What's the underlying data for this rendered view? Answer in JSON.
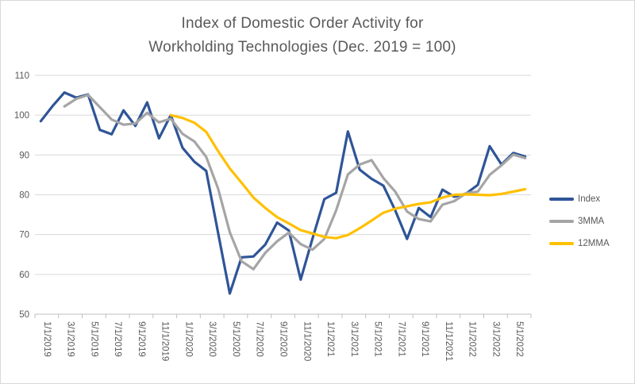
{
  "title": {
    "line1": "Index of Domestic Order Activity for",
    "line2": "Workholding Technologies (Dec. 2019 = 100)"
  },
  "legend": {
    "items": [
      {
        "label": "Index",
        "color": "#2f5597"
      },
      {
        "label": "3MMA",
        "color": "#a5a5a5"
      },
      {
        "label": "12MMA",
        "color": "#ffc000"
      }
    ]
  },
  "colors": {
    "index_line": "#2f5597",
    "mma3_line": "#a5a5a5",
    "mma12_line": "#ffc000",
    "gridline": "#d9d9d9",
    "axis_line": "#bfbfbf",
    "text": "#595959"
  },
  "chart_data": {
    "type": "line",
    "title": "Index of Domestic Order Activity for Workholding Technologies (Dec. 2019 = 100)",
    "x_tick_labels": [
      "1/1/2019",
      "3/1/2019",
      "5/1/2019",
      "7/1/2019",
      "9/1/2019",
      "11/1/2019",
      "1/1/2020",
      "3/1/2020",
      "5/1/2020",
      "7/1/2020",
      "9/1/2020",
      "11/1/2020",
      "1/1/2021",
      "3/1/2021",
      "5/1/2021",
      "7/1/2021",
      "9/1/2021",
      "11/1/2021",
      "1/1/2022",
      "3/1/2022",
      "5/1/2022"
    ],
    "months_total": 42,
    "y_ticks": [
      50,
      60,
      70,
      80,
      90,
      100,
      110
    ],
    "ylim": [
      50,
      110
    ],
    "grid": true,
    "legend_position": "right",
    "series": [
      {
        "name": "Index",
        "color": "#2f5597",
        "start_month_index": 0,
        "values": [
          98.5,
          102.3,
          105.7,
          104.4,
          105.2,
          96.3,
          95.2,
          101.2,
          97.3,
          103.2,
          94.2,
          100.0,
          91.8,
          88.3,
          86.0,
          70.5,
          55.2,
          64.3,
          64.5,
          67.5,
          73.0,
          71.0,
          58.7,
          69.0,
          78.9,
          80.5,
          95.9,
          86.3,
          84.0,
          82.3,
          76.1,
          68.9,
          76.7,
          74.4,
          81.3,
          79.5,
          80.3,
          82.5,
          92.2,
          87.6,
          90.5,
          89.6
        ]
      },
      {
        "name": "3MMA",
        "color": "#a5a5a5",
        "start_month_index": 2,
        "values": [
          102.2,
          104.1,
          105.1,
          102.0,
          98.9,
          97.6,
          97.9,
          100.6,
          98.2,
          99.1,
          95.3,
          93.4,
          89.5,
          81.6,
          70.6,
          63.3,
          61.3,
          65.4,
          68.3,
          70.5,
          67.6,
          66.2,
          68.9,
          76.1,
          85.1,
          87.6,
          88.7,
          84.2,
          80.8,
          75.8,
          73.9,
          73.3,
          77.5,
          78.4,
          80.4,
          80.8,
          85.0,
          87.4,
          90.1,
          89.2
        ]
      },
      {
        "name": "12MMA",
        "color": "#ffc000",
        "start_month_index": 11,
        "values": [
          100.0,
          99.3,
          98.1,
          95.8,
          91.0,
          86.6,
          83.0,
          79.3,
          76.7,
          74.4,
          72.8,
          71.1,
          70.3,
          69.4,
          69.1,
          69.9,
          71.6,
          73.5,
          75.5,
          76.5,
          77.1,
          77.7,
          78.1,
          79.3,
          80.0,
          80.1,
          80.0,
          79.9,
          80.2,
          80.8,
          81.4
        ]
      }
    ]
  }
}
